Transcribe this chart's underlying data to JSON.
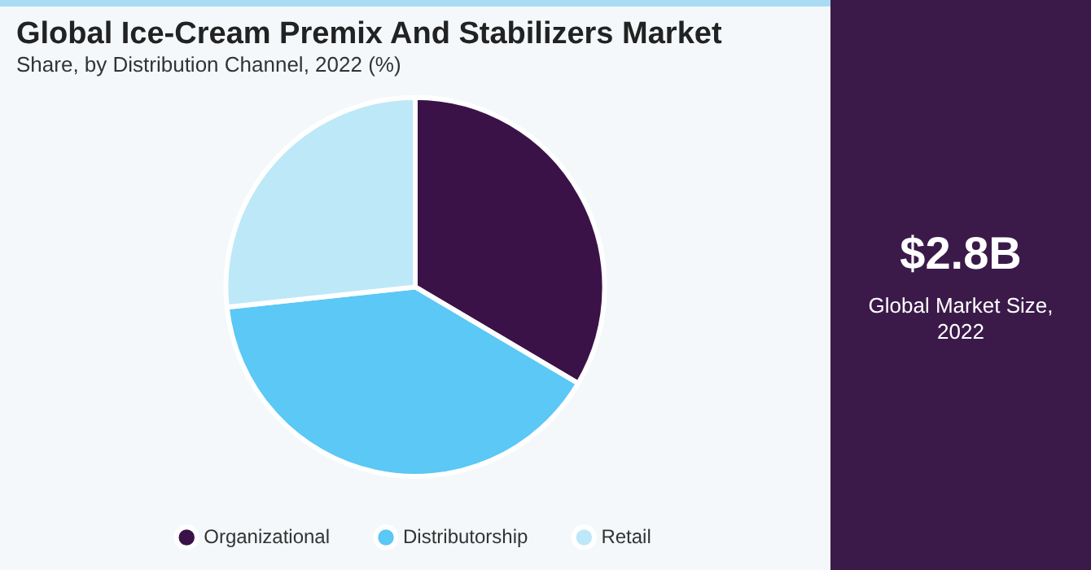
{
  "chart_data": {
    "type": "pie",
    "title": "Global Ice-Cream Premix And Stabilizers Market",
    "subtitle": "Share, by Distribution Channel, 2022 (%)",
    "categories": [
      "Organizational",
      "Distributorship",
      "Retail"
    ],
    "values": [
      33.5,
      39.8,
      26.7
    ],
    "colors": [
      "#3a1248",
      "#5bc8f5",
      "#bde8f8"
    ],
    "legend": "bottom",
    "annotations": [
      "$2.8B",
      "Global Market Size, 2022"
    ]
  }
}
